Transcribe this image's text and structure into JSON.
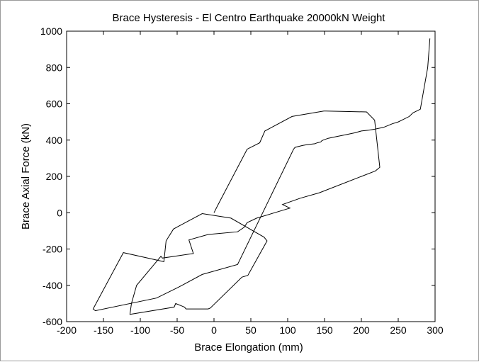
{
  "chart_data": {
    "type": "line",
    "title": "Brace Hysteresis - El Centro Earthquake 20000kN Weight",
    "xlabel": "Brace Elongation (mm)",
    "ylabel": "Brace Axial Force (kN)",
    "xlim": [
      -200,
      300
    ],
    "ylim": [
      -600,
      1000
    ],
    "xticks": [
      "-200",
      "-150",
      "-100",
      "-50",
      "0",
      "50",
      "100",
      "150",
      "200",
      "250",
      "300"
    ],
    "yticks": [
      "1000",
      "800",
      "600",
      "400",
      "200",
      "0",
      "-200",
      "-400",
      "-600"
    ],
    "grid": false,
    "line_color": "#000000",
    "series": [
      {
        "x": [
          0,
          5,
          45,
          62,
          69,
          106,
          149,
          152,
          207,
          218,
          225,
          219,
          143,
          117,
          93,
          103,
          58,
          45,
          41,
          32,
          -8,
          -34,
          -28,
          -70,
          -72,
          -105,
          -112,
          -114,
          -54,
          -52,
          -40,
          -38,
          -8,
          -5,
          38,
          46,
          72,
          68,
          23,
          -16,
          -46,
          -55,
          -65,
          -68,
          -123,
          -164,
          -161,
          -78,
          -48,
          -16,
          32,
          108,
          110,
          120,
          126,
          137,
          140,
          145,
          146,
          148,
          155,
          167,
          179,
          191,
          200,
          210,
          218,
          230,
          236,
          242,
          250,
          255,
          265,
          270,
          280,
          290,
          293
        ],
        "y": [
          0,
          40,
          350,
          385,
          450,
          530,
          560,
          560,
          555,
          510,
          250,
          230,
          110,
          80,
          45,
          25,
          -30,
          -55,
          -80,
          -105,
          -120,
          -150,
          -225,
          -250,
          -240,
          -400,
          -500,
          -560,
          -520,
          -500,
          -520,
          -530,
          -530,
          -525,
          -355,
          -345,
          -155,
          -135,
          -30,
          -5,
          -70,
          -90,
          -155,
          -270,
          -220,
          -530,
          -540,
          -470,
          -410,
          -340,
          -285,
          350,
          360,
          370,
          375,
          380,
          385,
          390,
          395,
          400,
          410,
          420,
          430,
          440,
          450,
          455,
          460,
          470,
          480,
          490,
          500,
          510,
          530,
          550,
          570,
          800,
          960
        ]
      }
    ]
  }
}
